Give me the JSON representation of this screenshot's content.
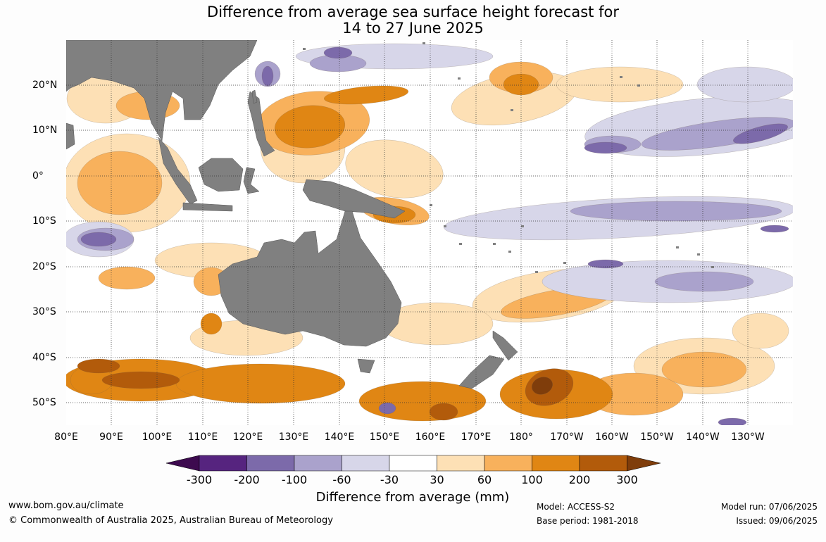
{
  "title_line1": "Difference from average sea surface height forecast for",
  "title_line2": "14 to 27 June 2025",
  "lon_labels": [
    "80°E",
    "90°E",
    "100°E",
    "110°E",
    "120°E",
    "130°E",
    "140°E",
    "150°E",
    "160°E",
    "170°E",
    "180°",
    "170°W",
    "160°W",
    "150°W",
    "140°W",
    "130°W"
  ],
  "lat_labels": [
    "20°N",
    "10°N",
    "0°",
    "10°S",
    "20°S",
    "30°S",
    "40°S",
    "50°S"
  ],
  "colorbar": {
    "title": "Difference from average (mm)",
    "ticks": [
      "-300",
      "-200",
      "-100",
      "-60",
      "-30",
      "30",
      "60",
      "100",
      "200",
      "300"
    ],
    "colors": [
      "#3d0a4f",
      "#56247f",
      "#7c6aaa",
      "#aaa2cc",
      "#d7d6e9",
      "#ffffff",
      "#fde0b5",
      "#f8b15c",
      "#e08614",
      "#b25b0b",
      "#7f3d0b"
    ]
  },
  "land_color": "#808080",
  "footer": {
    "website": "www.bom.gov.au/climate",
    "copyright": "© Commonwealth of Australia 2025, Australian Bureau of Meteorology",
    "model": "Model: ACCESS-S2",
    "base_period": "Base period: 1981-2018",
    "model_run": "Model run: 07/06/2025",
    "issued": "Issued: 09/06/2025"
  }
}
